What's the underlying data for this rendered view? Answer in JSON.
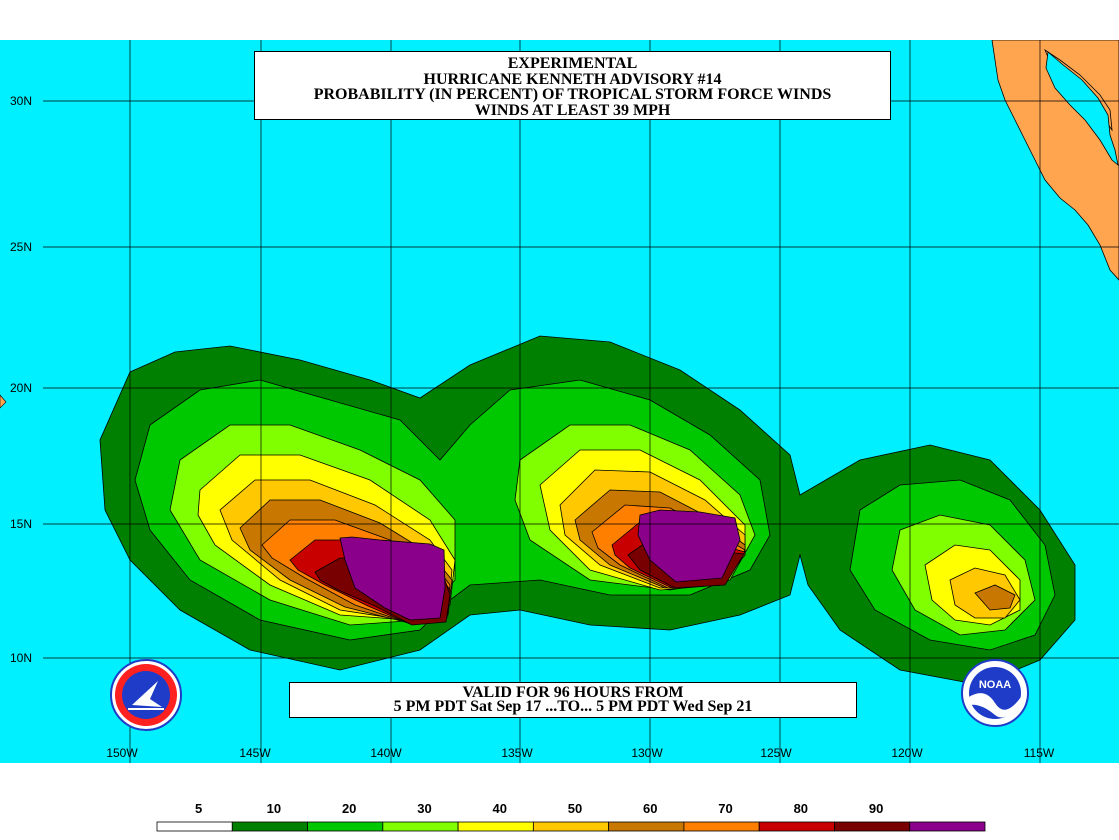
{
  "title": {
    "line1": "EXPERIMENTAL",
    "line2": "HURRICANE KENNETH ADVISORY #14",
    "line3": "PROBABILITY (IN PERCENT) OF TROPICAL STORM FORCE WINDS",
    "line4": "WINDS AT LEAST 39 MPH"
  },
  "valid": {
    "line1": "VALID FOR 96 HOURS FROM",
    "line2": "5 PM PDT Sat Sep 17 ...TO... 5 PM PDT Wed Sep 21"
  },
  "lat_labels": [
    "30N",
    "25N",
    "20N",
    "15N",
    "10N"
  ],
  "lon_labels": [
    "150W",
    "145W",
    "140W",
    "135W",
    "130W",
    "125W",
    "120W",
    "115W"
  ],
  "legend": {
    "labels": [
      "5",
      "10",
      "20",
      "30",
      "40",
      "50",
      "60",
      "70",
      "80",
      "90"
    ],
    "colors": [
      "#ffffff",
      "#008000",
      "#00c800",
      "#80ff00",
      "#ffff00",
      "#ffc800",
      "#c87800",
      "#ff7f00",
      "#c80000",
      "#780000",
      "#8b008b"
    ]
  },
  "colors": {
    "ocean": "#00f0ff",
    "land": "#ffa550",
    "grid": "#000000"
  },
  "logos": {
    "left": "NWS",
    "right": "NOAA"
  }
}
